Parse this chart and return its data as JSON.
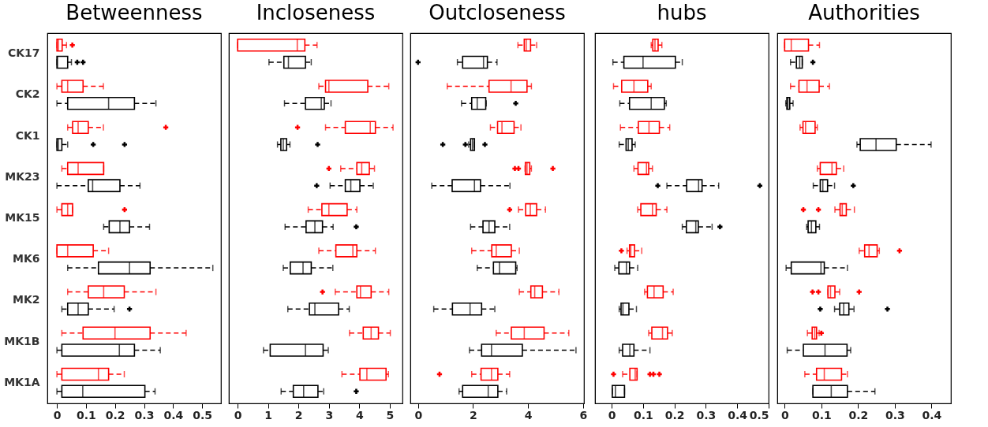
{
  "chart_data": [
    {
      "type": "box",
      "title": "Betweenness",
      "orientation": "horizontal",
      "line_style": "dashed",
      "marker": "cross",
      "xlim": [
        -0.033,
        0.565
      ],
      "xticks": [
        0,
        0.1,
        0.2,
        0.3,
        0.4,
        0.5
      ],
      "categories": [
        "CK17",
        "CK2",
        "CK1",
        "MK23",
        "MK15",
        "MK6",
        "MK2",
        "MK1B",
        "MK1A"
      ],
      "series": [
        {
          "color": "#ff0000",
          "boxes": [
            {
              "low": 0,
              "q1": 0,
              "median": 0.005,
              "q3": 0.018,
              "high": 0.033,
              "outliers": [
                0.053
              ]
            },
            {
              "low": 0,
              "q1": 0.017,
              "median": 0.037,
              "q3": 0.09,
              "high": 0.16
            },
            {
              "low": 0.037,
              "q1": 0.054,
              "median": 0.073,
              "q3": 0.108,
              "high": 0.16,
              "outliers": [
                0.375
              ]
            },
            {
              "low": 0.017,
              "q1": 0.037,
              "median": 0.073,
              "q3": 0.161,
              "high": 0.161
            },
            {
              "low": 0,
              "q1": 0.017,
              "median": 0.037,
              "q3": 0.054,
              "high": 0.054,
              "outliers": [
                0.233
              ]
            },
            {
              "low": 0,
              "q1": 0,
              "median": 0.037,
              "q3": 0.125,
              "high": 0.178
            },
            {
              "low": 0.037,
              "q1": 0.108,
              "median": 0.161,
              "q3": 0.232,
              "high": 0.341
            },
            {
              "low": 0.017,
              "q1": 0.09,
              "median": 0.2,
              "q3": 0.321,
              "high": 0.445
            },
            {
              "low": 0,
              "q1": 0.017,
              "median": 0.143,
              "q3": 0.178,
              "high": 0.232
            }
          ]
        },
        {
          "color": "#000000",
          "boxes": [
            {
              "low": 0,
              "q1": 0,
              "median": 0.002,
              "q3": 0.037,
              "high": 0.05,
              "outliers": [
                0.07,
                0.09
              ]
            },
            {
              "low": 0,
              "q1": 0.037,
              "median": 0.178,
              "q3": 0.267,
              "high": 0.341
            },
            {
              "low": 0,
              "q1": 0,
              "median": 0.005,
              "q3": 0.017,
              "high": 0.037,
              "outliers": [
                0.125,
                0.233
              ]
            },
            {
              "low": 0,
              "q1": 0.108,
              "median": 0.123,
              "q3": 0.217,
              "high": 0.286
            },
            {
              "low": 0.161,
              "q1": 0.18,
              "median": 0.217,
              "q3": 0.25,
              "high": 0.319
            },
            {
              "low": 0.037,
              "q1": 0.143,
              "median": 0.25,
              "q3": 0.321,
              "high": 0.537
            },
            {
              "low": 0.017,
              "q1": 0.037,
              "median": 0.073,
              "q3": 0.108,
              "high": 0.197,
              "outliers": [
                0.25
              ]
            },
            {
              "low": 0,
              "q1": 0.017,
              "median": 0.215,
              "q3": 0.267,
              "high": 0.356
            },
            {
              "low": 0,
              "q1": 0.017,
              "median": 0.089,
              "q3": 0.303,
              "high": 0.338
            }
          ]
        }
      ]
    },
    {
      "type": "box",
      "title": "Incloseness",
      "orientation": "horizontal",
      "line_style": "dashed",
      "marker": "cross",
      "tick_labels": "x",
      "xlim": [
        -0.29,
        5.42
      ],
      "xticks": [
        0,
        1,
        2,
        3,
        4,
        5
      ],
      "categories": [
        null,
        null,
        null,
        null,
        null,
        null,
        null,
        null,
        null
      ],
      "series": [
        {
          "color": "#ff0000",
          "boxes": [
            {
              "low": 0,
              "q1": 0,
              "median": 1.96,
              "q3": 2.21,
              "high": 2.61
            },
            {
              "low": 2.67,
              "q1": 2.89,
              "median": 3.0,
              "q3": 4.28,
              "high": 4.97
            },
            {
              "low": 2.89,
              "q1": 3.54,
              "median": 4.36,
              "q3": 4.53,
              "high": 5.11,
              "outliers": [
                1.97
              ]
            },
            {
              "low": 3.39,
              "q1": 3.92,
              "median": 4.08,
              "q3": 4.33,
              "high": 4.5,
              "outliers": [
                3.0
              ]
            },
            {
              "low": 2.32,
              "q1": 2.77,
              "median": 3.0,
              "q3": 3.6,
              "high": 3.92
            },
            {
              "low": 2.67,
              "q1": 3.23,
              "median": 3.79,
              "q3": 3.92,
              "high": 4.53
            },
            {
              "low": 3.21,
              "q1": 3.92,
              "median": 4.04,
              "q3": 4.39,
              "high": 4.97,
              "outliers": [
                2.79
              ]
            },
            {
              "low": 3.68,
              "q1": 4.13,
              "median": 4.39,
              "q3": 4.63,
              "high": 5.02
            },
            {
              "low": 3.43,
              "q1": 4.02,
              "median": 4.25,
              "q3": 4.88,
              "high": 4.96
            }
          ]
        },
        {
          "color": "#000000",
          "boxes": [
            {
              "low": 1.03,
              "q1": 1.52,
              "median": 1.67,
              "q3": 2.23,
              "high": 2.42
            },
            {
              "low": 1.54,
              "q1": 2.23,
              "median": 2.75,
              "q3": 2.85,
              "high": 3.07
            },
            {
              "low": 1.31,
              "q1": 1.42,
              "median": 1.5,
              "q3": 1.61,
              "high": 1.72,
              "outliers": [
                2.63
              ]
            },
            {
              "low": 3.04,
              "q1": 3.54,
              "median": 3.72,
              "q3": 4.02,
              "high": 4.46,
              "outliers": [
                2.6
              ]
            },
            {
              "low": 1.56,
              "q1": 2.25,
              "median": 2.54,
              "q3": 2.79,
              "high": 3.14,
              "outliers": [
                3.9
              ]
            },
            {
              "low": 1.5,
              "q1": 1.73,
              "median": 2.15,
              "q3": 2.42,
              "high": 3.13
            },
            {
              "low": 1.65,
              "q1": 2.36,
              "median": 2.54,
              "q3": 3.32,
              "high": 3.67
            },
            {
              "low": 0.85,
              "q1": 1.07,
              "median": 2.23,
              "q3": 2.81,
              "high": 2.98
            },
            {
              "low": 1.43,
              "q1": 1.83,
              "median": 2.17,
              "q3": 2.64,
              "high": 2.83,
              "outliers": [
                3.9
              ]
            }
          ]
        }
      ]
    },
    {
      "type": "box",
      "title": "Outcloseness",
      "orientation": "horizontal",
      "line_style": "dashed",
      "marker": "cross",
      "tick_labels": "x",
      "xlim": [
        -0.28,
        6.03
      ],
      "xticks": [
        0,
        2,
        4,
        6
      ],
      "categories": [
        null,
        null,
        null,
        null,
        null,
        null,
        null,
        null,
        null
      ],
      "series": [
        {
          "color": "#ff0000",
          "boxes": [
            {
              "low": 3.63,
              "q1": 3.86,
              "median": 3.93,
              "q3": 4.09,
              "high": 4.31
            },
            {
              "low": 1.06,
              "q1": 2.58,
              "median": 3.38,
              "q3": 3.96,
              "high": 4.12
            },
            {
              "low": 2.63,
              "q1": 2.89,
              "median": 3.05,
              "q3": 3.49,
              "high": 3.74
            },
            {
              "low": 3.89,
              "q1": 3.9,
              "median": 3.96,
              "q3": 4.06,
              "high": 4.12,
              "outliers": [
                3.52,
                3.65,
                4.9
              ]
            },
            {
              "low": 3.65,
              "q1": 3.91,
              "median": 4.08,
              "q3": 4.31,
              "high": 4.63,
              "outliers": [
                3.33
              ]
            },
            {
              "low": 1.95,
              "q1": 2.68,
              "median": 2.84,
              "q3": 3.39,
              "high": 3.68
            },
            {
              "low": 3.68,
              "q1": 4.1,
              "median": 4.24,
              "q3": 4.52,
              "high": 5.12
            },
            {
              "low": 2.84,
              "q1": 3.39,
              "median": 3.86,
              "q3": 4.58,
              "high": 5.48
            },
            {
              "low": 1.95,
              "q1": 2.29,
              "median": 2.67,
              "q3": 2.9,
              "high": 3.33,
              "outliers": [
                0.78
              ]
            }
          ]
        },
        {
          "color": "#000000",
          "boxes": [
            {
              "low": 1.43,
              "q1": 1.62,
              "median": 2.38,
              "q3": 2.52,
              "high": 2.87,
              "outliers": [
                0
              ]
            },
            {
              "low": 1.58,
              "q1": 1.95,
              "median": 2.15,
              "q3": 2.46,
              "high": 2.48,
              "outliers": [
                3.55
              ]
            },
            {
              "low": 1.84,
              "q1": 1.91,
              "median": 1.98,
              "q3": 2.05,
              "high": 2.05,
              "outliers": [
                0.9,
                1.72,
                2.43
              ]
            },
            {
              "low": 0.5,
              "q1": 1.24,
              "median": 2.05,
              "q3": 2.27,
              "high": 3.34
            },
            {
              "low": 1.91,
              "q1": 2.36,
              "median": 2.58,
              "q3": 2.79,
              "high": 3.33
            },
            {
              "low": 2.15,
              "q1": 2.74,
              "median": 2.96,
              "q3": 3.55,
              "high": 3.6
            },
            {
              "low": 0.57,
              "q1": 1.25,
              "median": 1.89,
              "q3": 2.31,
              "high": 2.79
            },
            {
              "low": 1.87,
              "q1": 2.31,
              "median": 2.67,
              "q3": 3.79,
              "high": 5.74
            },
            {
              "low": 1.49,
              "q1": 1.62,
              "median": 2.55,
              "q3": 2.9,
              "high": 3.22
            }
          ]
        }
      ]
    },
    {
      "type": "box",
      "title": "hubs",
      "orientation": "horizontal",
      "line_style": "dashed",
      "marker": "cross",
      "tick_labels": "x",
      "xlim": [
        -0.053,
        0.5
      ],
      "xticks": [
        0,
        0.1,
        0.2,
        0.3,
        0.4,
        0.5
      ],
      "categories": [
        null,
        null,
        null,
        null,
        null,
        null,
        null,
        null,
        null
      ],
      "series": [
        {
          "color": "#ff0000",
          "boxes": [
            {
              "low": 0.126,
              "q1": 0.131,
              "median": 0.138,
              "q3": 0.148,
              "high": 0.16
            },
            {
              "low": 0.006,
              "q1": 0.032,
              "median": 0.071,
              "q3": 0.115,
              "high": 0.126
            },
            {
              "low": 0.028,
              "q1": 0.085,
              "median": 0.119,
              "q3": 0.152,
              "high": 0.185
            },
            {
              "low": 0.071,
              "q1": 0.084,
              "median": 0.111,
              "q3": 0.118,
              "high": 0.13
            },
            {
              "low": 0.083,
              "q1": 0.093,
              "median": 0.13,
              "q3": 0.142,
              "high": 0.176
            },
            {
              "low": 0.049,
              "q1": 0.057,
              "median": 0.061,
              "q3": 0.073,
              "high": 0.096,
              "outliers": [
                0.031
              ]
            },
            {
              "low": 0.105,
              "q1": 0.114,
              "median": 0.135,
              "q3": 0.164,
              "high": 0.196
            },
            {
              "low": 0.118,
              "q1": 0.128,
              "median": 0.162,
              "q3": 0.178,
              "high": 0.193
            },
            {
              "low": 0.035,
              "q1": 0.058,
              "median": 0.075,
              "q3": 0.081,
              "high": 0.081,
              "outliers": [
                0.006,
                0.122,
                0.133,
                0.152
              ]
            }
          ]
        },
        {
          "color": "#000000",
          "boxes": [
            {
              "low": 0.004,
              "q1": 0.039,
              "median": 0.1,
              "q3": 0.203,
              "high": 0.225
            },
            {
              "low": 0.026,
              "q1": 0.057,
              "median": 0.126,
              "q3": 0.168,
              "high": 0.174
            },
            {
              "low": 0.024,
              "q1": 0.046,
              "median": 0.053,
              "q3": 0.065,
              "high": 0.075
            },
            {
              "low": 0.176,
              "q1": 0.239,
              "median": 0.277,
              "q3": 0.288,
              "high": 0.341,
              "outliers": [
                0.147,
                0.472
              ]
            },
            {
              "low": 0.225,
              "q1": 0.238,
              "median": 0.268,
              "q3": 0.276,
              "high": 0.32,
              "outliers": [
                0.345
              ]
            },
            {
              "low": 0.01,
              "q1": 0.023,
              "median": 0.047,
              "q3": 0.057,
              "high": 0.083
            },
            {
              "low": 0.024,
              "q1": 0.03,
              "median": 0.036,
              "q3": 0.055,
              "high": 0.079
            },
            {
              "low": 0.024,
              "q1": 0.035,
              "median": 0.058,
              "q3": 0.071,
              "high": 0.122
            },
            {
              "low": 0.002,
              "q1": 0.002,
              "median": 0.012,
              "q3": 0.041,
              "high": 0.041
            }
          ]
        }
      ]
    },
    {
      "type": "box",
      "title": "Authorities",
      "orientation": "horizontal",
      "line_style": "dashed",
      "marker": "cross",
      "tick_labels": "x",
      "xlim": [
        -0.02,
        0.453
      ],
      "xticks": [
        0,
        0.1,
        0.2,
        0.3,
        0.4
      ],
      "categories": [
        null,
        null,
        null,
        null,
        null,
        null,
        null,
        null,
        null
      ],
      "series": [
        {
          "color": "#ff0000",
          "boxes": [
            {
              "low": 0,
              "q1": 0,
              "median": 0.018,
              "q3": 0.065,
              "high": 0.095
            },
            {
              "low": 0.016,
              "q1": 0.039,
              "median": 0.061,
              "q3": 0.094,
              "high": 0.122
            },
            {
              "low": 0.042,
              "q1": 0.05,
              "median": 0.057,
              "q3": 0.083,
              "high": 0.089
            },
            {
              "low": 0.089,
              "q1": 0.097,
              "median": 0.129,
              "q3": 0.141,
              "high": 0.161
            },
            {
              "low": 0.137,
              "q1": 0.151,
              "median": 0.157,
              "q3": 0.168,
              "high": 0.19,
              "outliers": [
                0.051,
                0.092
              ]
            },
            {
              "low": 0.203,
              "q1": 0.218,
              "median": 0.23,
              "q3": 0.252,
              "high": 0.258,
              "outliers": [
                0.313
              ]
            },
            {
              "low": 0.118,
              "q1": 0.118,
              "median": 0.125,
              "q3": 0.137,
              "high": 0.15,
              "outliers": [
                0.076,
                0.092,
                0.203
              ]
            },
            {
              "low": 0.062,
              "q1": 0.075,
              "median": 0.082,
              "q3": 0.087,
              "high": 0.094,
              "outliers": [
                0.1
              ]
            },
            {
              "low": 0.055,
              "q1": 0.087,
              "median": 0.108,
              "q3": 0.155,
              "high": 0.171
            }
          ]
        },
        {
          "color": "#000000",
          "boxes": [
            {
              "low": 0.016,
              "q1": 0.032,
              "median": 0.041,
              "q3": 0.048,
              "high": 0.048,
              "outliers": [
                0.077
              ]
            },
            {
              "low": 0.003,
              "q1": 0.006,
              "median": 0.009,
              "q3": 0.014,
              "high": 0.023
            },
            {
              "low": 0.197,
              "q1": 0.206,
              "median": 0.249,
              "q3": 0.304,
              "high": 0.399
            },
            {
              "low": 0.078,
              "q1": 0.097,
              "median": 0.104,
              "q3": 0.117,
              "high": 0.136,
              "outliers": [
                0.187
              ]
            },
            {
              "low": 0.06,
              "q1": 0.064,
              "median": 0.073,
              "q3": 0.085,
              "high": 0.095
            },
            {
              "low": 0.004,
              "q1": 0.018,
              "median": 0.099,
              "q3": 0.108,
              "high": 0.171
            },
            {
              "low": 0.136,
              "q1": 0.15,
              "median": 0.161,
              "q3": 0.175,
              "high": 0.189,
              "outliers": [
                0.097,
                0.28
              ]
            },
            {
              "low": 0.007,
              "q1": 0.051,
              "median": 0.11,
              "q3": 0.17,
              "high": 0.18
            },
            {
              "low": 0.077,
              "q1": 0.077,
              "median": 0.127,
              "q3": 0.171,
              "high": 0.246
            }
          ]
        }
      ]
    }
  ]
}
